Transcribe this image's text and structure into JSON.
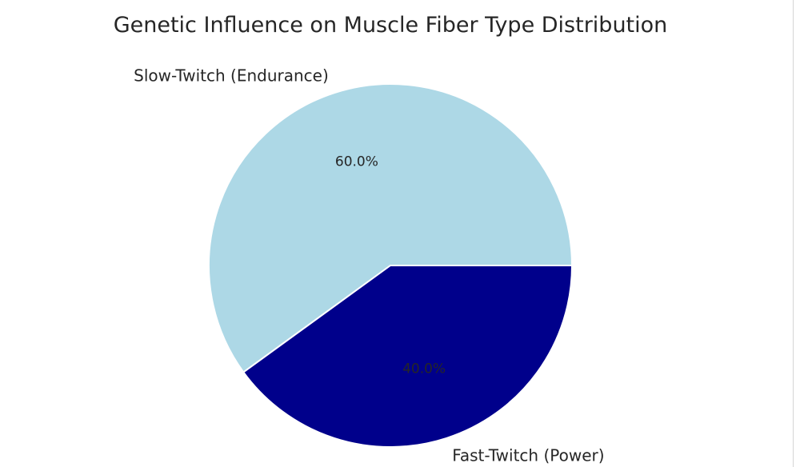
{
  "chart_data": {
    "type": "pie",
    "title": "Genetic Influence on Muscle Fiber Type Distribution",
    "slices": [
      {
        "label": "Slow-Twitch (Endurance)",
        "value": 60.0,
        "display": "60.0%",
        "color": "#ADD8E6"
      },
      {
        "label": "Fast-Twitch (Power)",
        "value": 40.0,
        "display": "40.0%",
        "color": "#00008B"
      }
    ],
    "edge_color": "#ffffff",
    "label_color": "#262626"
  }
}
